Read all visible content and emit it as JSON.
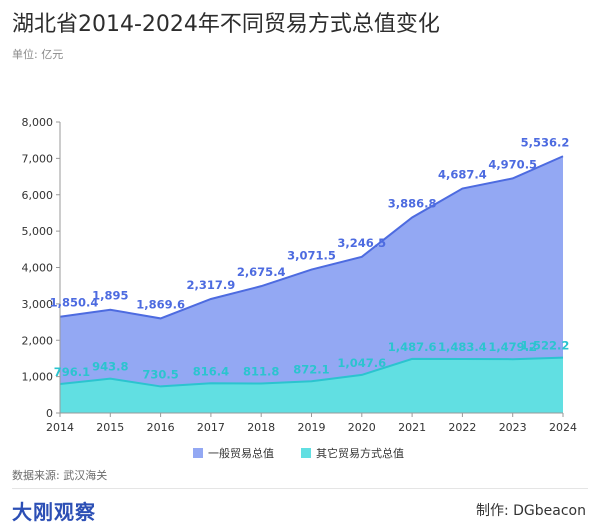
{
  "header": {
    "title": "湖北省2014-2024年不同贸易方式总值变化",
    "unit": "单位: 亿元"
  },
  "footer": {
    "source": "数据来源: 武汉海关",
    "brand": "大刚观察",
    "credit": "制作: DGbeacon"
  },
  "colors": {
    "series_a_fill": "#93a8f3",
    "series_a_line": "#4d6be0",
    "series_b_fill": "#61dfe2",
    "series_b_line": "#2bc4cf"
  },
  "chart_data": {
    "type": "area",
    "stacked": true,
    "x": [
      "2014",
      "2015",
      "2016",
      "2017",
      "2018",
      "2019",
      "2020",
      "2021",
      "2022",
      "2023",
      "2024"
    ],
    "series": [
      {
        "name": "一般贸易总值",
        "values": [
          1850.4,
          1895,
          1869.6,
          2317.9,
          2675.4,
          3071.5,
          3246.5,
          3886.8,
          4687.4,
          4970.5,
          5536.2
        ],
        "labels": [
          "1,850.4",
          "1,895",
          "1,869.6",
          "2,317.9",
          "2,675.4",
          "3,071.5",
          "3,246.5",
          "3,886.8",
          "4,687.4",
          "4,970.5",
          "5,536.2"
        ]
      },
      {
        "name": "其它贸易方式总值",
        "values": [
          796.1,
          943.8,
          730.5,
          816.4,
          811.8,
          872.1,
          1047.6,
          1487.6,
          1483.4,
          1479.2,
          1522.2
        ],
        "labels": [
          "796.1",
          "943.8",
          "730.5",
          "816.4",
          "811.8",
          "872.1",
          "1,047.6",
          "1,487.6",
          "1,483.4",
          "1,479.2",
          "1,522.2"
        ]
      }
    ],
    "ylim": [
      0,
      8000
    ],
    "yticks": [
      "0",
      "1,000",
      "2,000",
      "3,000",
      "4,000",
      "5,000",
      "6,000",
      "7,000",
      "8,000"
    ],
    "grid": false,
    "legend": "bottom"
  }
}
